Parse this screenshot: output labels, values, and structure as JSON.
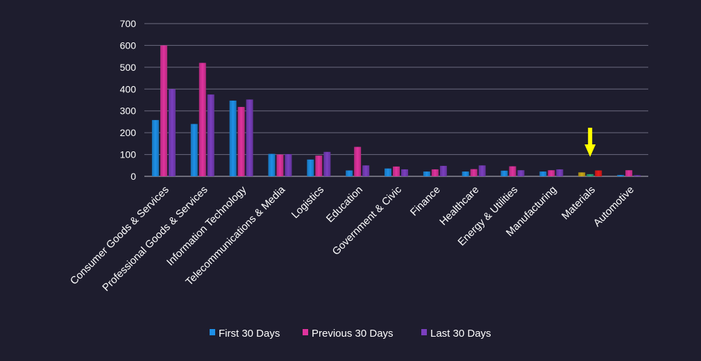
{
  "chart_data": {
    "type": "bar",
    "categories": [
      "Consumer Goods &  Services",
      "Professional Goods & Services",
      "Information Technology",
      "Telecommunications & Media",
      "Logistics",
      "Education",
      "Government & Civic",
      "Finance",
      "Healthcare",
      "Energy & Utilities",
      "Manufacturing",
      "Materials",
      "Automotive"
    ],
    "series": [
      {
        "name": "First 30 Days",
        "color": "#1e90e8",
        "values": [
          258,
          240,
          347,
          103,
          77,
          27,
          36,
          22,
          22,
          26,
          22,
          18,
          6
        ]
      },
      {
        "name": "Previous 30 Days",
        "color": "#e0339e",
        "values": [
          600,
          520,
          318,
          100,
          95,
          135,
          45,
          32,
          33,
          46,
          28,
          10,
          28
        ]
      },
      {
        "name": "Last 30 Days",
        "color": "#7b3fbf",
        "values": [
          400,
          375,
          352,
          102,
          112,
          50,
          32,
          48,
          50,
          28,
          32,
          27,
          5
        ]
      }
    ],
    "highlight": {
      "category": "Materials",
      "colors": [
        "#c9a818",
        "#25a87c",
        "#e81c1c"
      ],
      "arrow_color": "#ffff00",
      "arrow_icon": "down-arrow-icon"
    },
    "ylim": [
      0,
      700
    ],
    "yticks": [
      0,
      100,
      200,
      300,
      400,
      500,
      600,
      700
    ],
    "grid": true,
    "legend_position": "bottom",
    "background": "#1e1d2e",
    "gridline_color": "#6d6d80"
  }
}
